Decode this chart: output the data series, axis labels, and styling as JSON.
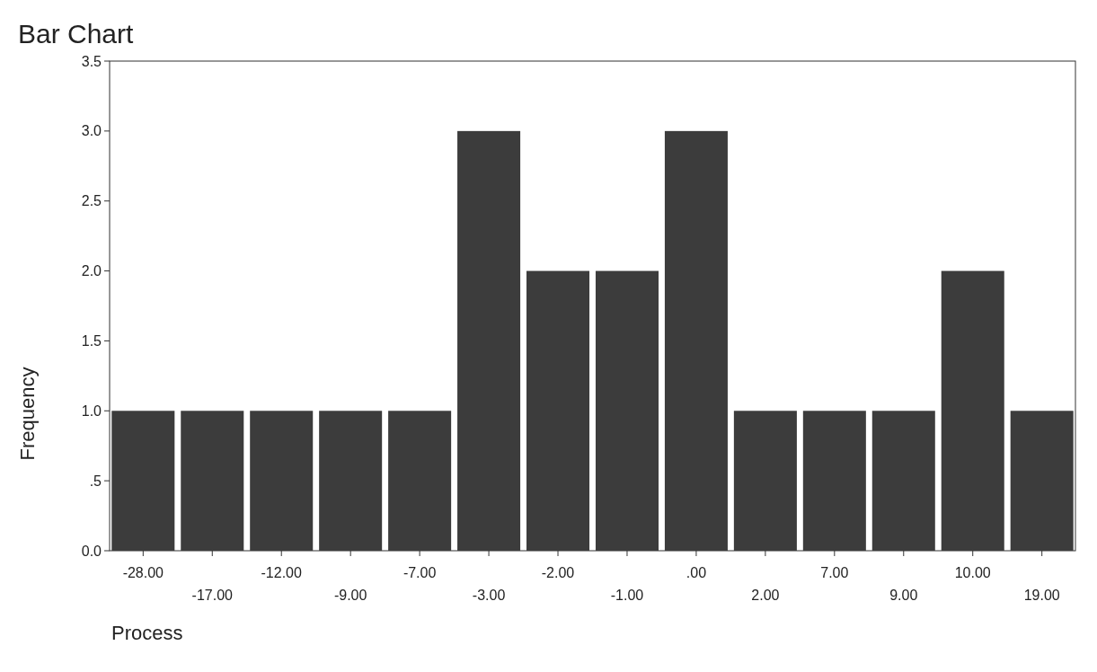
{
  "chart_data": {
    "type": "bar",
    "title": "Bar Chart",
    "xlabel": "Process",
    "ylabel": "Frequency",
    "categories": [
      "-28.00",
      "-17.00",
      "-12.00",
      "-9.00",
      "-7.00",
      "-3.00",
      "-2.00",
      "-1.00",
      ".00",
      "2.00",
      "7.00",
      "9.00",
      "10.00",
      "19.00"
    ],
    "values": [
      1,
      1,
      1,
      1,
      1,
      3,
      2,
      2,
      3,
      1,
      1,
      1,
      2,
      1
    ],
    "color": "#3c3c3c",
    "ylim": [
      0,
      3.5
    ],
    "yticks": [
      {
        "value": 0,
        "label": "0.0"
      },
      {
        "value": 0.5,
        "label": ".5"
      },
      {
        "value": 1,
        "label": "1.0"
      },
      {
        "value": 1.5,
        "label": "1.5"
      },
      {
        "value": 2,
        "label": "2.0"
      },
      {
        "value": 2.5,
        "label": "2.5"
      },
      {
        "value": 3,
        "label": "3.0"
      },
      {
        "value": 3.5,
        "label": "3.5"
      }
    ],
    "grid": false
  }
}
